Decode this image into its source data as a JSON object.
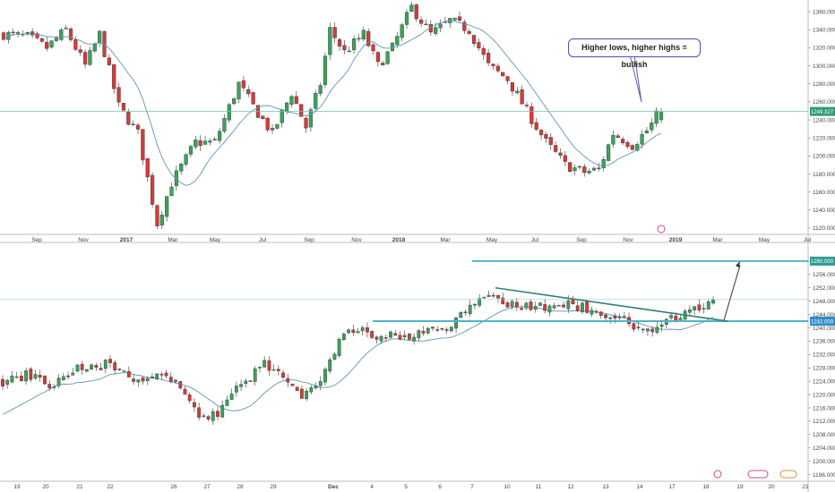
{
  "chart_data": [
    {
      "type": "candlestick",
      "name": "top",
      "title": "",
      "x_ticks": [
        "Sep",
        "Nov",
        "2017",
        "Mar",
        "May",
        "Jul",
        "Sep",
        "Nov",
        "2018",
        "Mar",
        "May",
        "Jul",
        "Sep",
        "Nov",
        "2019",
        "Mar",
        "May",
        "Jul"
      ],
      "y_ticks": [
        "1360.000",
        "1340.000",
        "1320.000",
        "1300.000",
        "1280.000",
        "1260.000",
        "1240.000",
        "1220.000",
        "1200.000",
        "1180.000",
        "1160.000",
        "1140.000",
        "1120.000"
      ],
      "ylim": [
        1113,
        1370
      ],
      "last_price": "1249.327",
      "annotation": "Higher lows, higher highs = bullish",
      "ohlc_count": 96,
      "moving_average": true,
      "colors": {
        "up": "#3aa35c",
        "down": "#d63a3a",
        "ma": "#5f95b5",
        "price_line": "#6fc6a8",
        "tag": "#2d9c70",
        "annotation_border": "#4c4fb8"
      }
    },
    {
      "type": "candlestick",
      "name": "bottom",
      "title": "",
      "x_ticks": [
        "19",
        "20",
        "21",
        "22",
        "26",
        "27",
        "28",
        "29",
        "Dec",
        "4",
        "5",
        "6",
        "7",
        "10",
        "11",
        "12",
        "13",
        "14",
        "17",
        "18",
        "19",
        "20",
        "21"
      ],
      "y_ticks": [
        "1260.000",
        "1256.000",
        "1252.000",
        "1248.000",
        "1244.000",
        "1240.000",
        "1236.000",
        "1232.000",
        "1228.000",
        "1224.000",
        "1220.000",
        "1216.000",
        "1212.000",
        "1208.000",
        "1204.000",
        "1200.000",
        "1196.000"
      ],
      "ylim": [
        1194,
        1264
      ],
      "levels": [
        {
          "label": "1260.000",
          "value": 1260
        },
        {
          "label": "1242.000",
          "value": 1242
        }
      ],
      "trendline": {
        "from": [
          7.7,
          1252
        ],
        "to": [
          17.9,
          1242
        ]
      },
      "projection": {
        "from": [
          17.9,
          1242
        ],
        "to": [
          18.8,
          1259
        ]
      },
      "colors": {
        "up": "#3aa35c",
        "down": "#d63a3a",
        "ma": "#5f95b5",
        "level": "#4fb5c9",
        "trend": "#2e7f7a",
        "tag": "#2d8ec9",
        "tag_top": "#2d9c8f"
      }
    }
  ]
}
